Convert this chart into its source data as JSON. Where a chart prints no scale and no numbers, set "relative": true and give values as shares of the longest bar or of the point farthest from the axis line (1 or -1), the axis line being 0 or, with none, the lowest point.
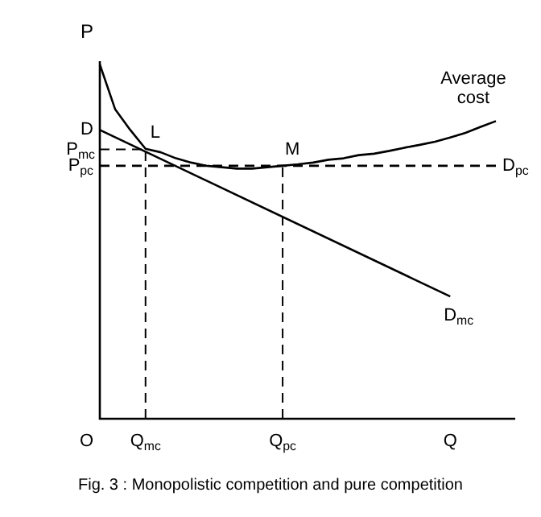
{
  "chart_data": {
    "type": "line",
    "relative": true,
    "ylabel": "P",
    "legend": false,
    "marker": "none",
    "categories": [
      null,
      null,
      null,
      "Q$_{mc}$",
      null,
      null,
      null,
      null,
      null,
      null,
      null,
      null,
      "Q$_{pc}$",
      null,
      null,
      null,
      null,
      null,
      null,
      null,
      null,
      null,
      null,
      "Q",
      null,
      null,
      null
    ],
    "series": [
      {
        "name": "Average cost",
        "color": "#000000",
        "values": [
          1.0,
          0.874,
          0.815,
          0.762,
          0.752,
          0.735,
          0.723,
          0.714,
          0.71,
          0.706,
          0.706,
          0.71,
          0.714,
          0.718,
          0.723,
          0.731,
          0.735,
          0.744,
          0.748,
          0.756,
          0.765,
          0.773,
          0.782,
          0.794,
          0.807,
          0.824,
          0.84
        ]
      },
      {
        "name": "D$_{mc}$",
        "color": "#000000",
        "values": [
          0.815,
          null,
          null,
          null,
          null,
          null,
          null,
          null,
          null,
          null,
          null,
          null,
          null,
          null,
          null,
          null,
          null,
          null,
          null,
          null,
          null,
          null,
          null,
          0.345,
          null,
          null,
          null
        ]
      },
      {
        "name": "D$_{pc}$",
        "color": "#000000",
        "line_style": "dashed",
        "values": [
          0.714,
          0.714,
          0.714,
          0.714,
          0.714,
          0.714,
          0.714,
          0.714,
          0.714,
          0.714,
          0.714,
          0.714,
          0.714,
          0.714,
          0.714,
          0.714,
          0.714,
          0.714,
          0.714,
          0.714,
          0.714,
          0.714,
          0.714,
          0.714,
          0.714,
          0.714,
          0.714
        ]
      }
    ],
    "ref_lines": [
      {
        "axis": "y",
        "value": 0.76,
        "label": "P$_{mc}$",
        "line_style": "dashed"
      },
      {
        "axis": "x",
        "value": "Q$_{mc}$",
        "line_style": "dashed"
      },
      {
        "axis": "x",
        "value": "Q$_{pc}$",
        "line_style": "dashed"
      }
    ],
    "annotations": [
      "D",
      "P$_{pc}$",
      "O",
      {
        "text": "L",
        "x": "Q$_{mc}$",
        "y": 0.762
      },
      {
        "text": "M",
        "x": "Q$_{pc}$",
        "y": 0.714
      },
      "Fig. 3 : Monopolistic competition and pure competition"
    ]
  }
}
